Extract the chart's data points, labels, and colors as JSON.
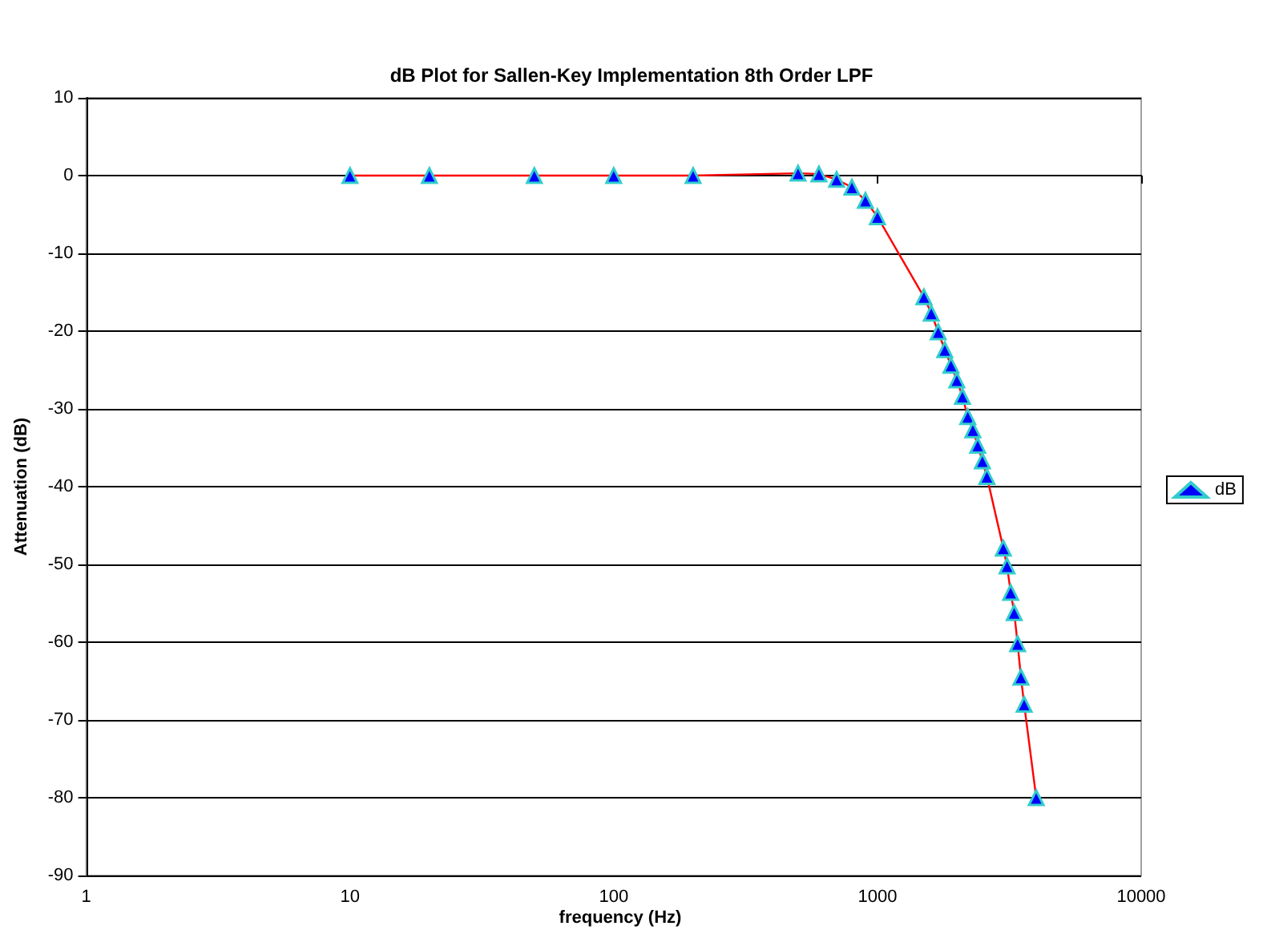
{
  "chart_data": {
    "type": "line",
    "title": "dB Plot for Sallen-Key Implementation 8th Order LPF",
    "xlabel": "frequency (Hz)",
    "ylabel": "Attenuation (dB)",
    "x": [
      10,
      20,
      50,
      100,
      200,
      500,
      600,
      700,
      800,
      900,
      1000,
      1500,
      1600,
      1700,
      1800,
      1900,
      2000,
      2100,
      2200,
      2300,
      2400,
      2500,
      2600,
      3000,
      3100,
      3200,
      3300,
      3400,
      3500,
      3600,
      4000
    ],
    "series": [
      {
        "name": "dB",
        "color": "#ff0000",
        "values": [
          0,
          0,
          0,
          0,
          0,
          0.3,
          0.2,
          -0.5,
          -1.5,
          -3.2,
          -5.3,
          -15.6,
          -17.7,
          -20.1,
          -22.4,
          -24.4,
          -26.3,
          -28.4,
          -31.0,
          -32.7,
          -34.7,
          -36.7,
          -38.7,
          -47.9,
          -50.2,
          -53.6,
          -56.2,
          -60.2,
          -64.5,
          -68.0,
          -80.0
        ]
      }
    ],
    "log": "x",
    "xlim": [
      1,
      10000
    ],
    "xticks": [
      1,
      10,
      100,
      1000,
      10000
    ],
    "ylim": [
      -90,
      10
    ],
    "yticks": [
      -90,
      -80,
      -70,
      -60,
      -50,
      -40,
      -30,
      -20,
      -10,
      0,
      10
    ],
    "grid": "y",
    "legend": "right",
    "marker": "triangle",
    "line_style": "solid"
  }
}
